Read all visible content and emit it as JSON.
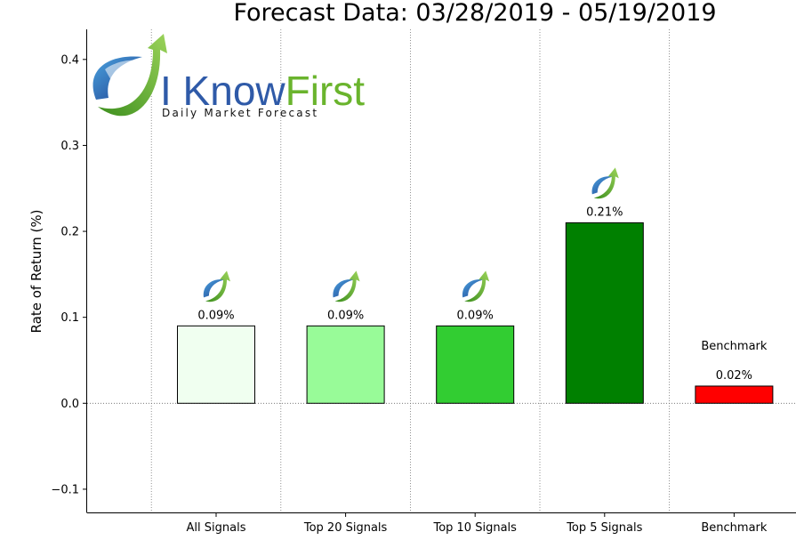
{
  "chart_data": {
    "type": "bar",
    "title": "Forecast Data: 03/28/2019 - 05/19/2019",
    "ylabel": "Rate of Return (%)",
    "xlabel": "",
    "categories": [
      "All Signals",
      "Top 20 Signals",
      "Top 10 Signals",
      "Top 5 Signals",
      "Benchmark"
    ],
    "values": [
      0.09,
      0.09,
      0.09,
      0.21,
      0.02
    ],
    "data_labels": [
      "0.09%",
      "0.09%",
      "0.09%",
      "0.21%",
      "0.02%"
    ],
    "bar_colors": [
      "#f0fff0",
      "#98fb98",
      "#32cd32",
      "#008000",
      "#ff0000"
    ],
    "y_ticks": [
      -0.1,
      0.0,
      0.1,
      0.2,
      0.3,
      0.4
    ],
    "y_tick_labels": [
      "−0.1",
      "0.0",
      "0.1",
      "0.2",
      "0.3",
      "0.4"
    ],
    "ylim": [
      -0.127,
      0.435
    ],
    "grid": "vertical dotted",
    "annotations": [
      {
        "category": "Benchmark",
        "text": "Benchmark"
      }
    ]
  },
  "logo": {
    "word_1": "I Know",
    "word_2": "First",
    "tagline": "Daily Market Forecast",
    "color_1": "#2f5aa8",
    "color_2": "#6ab42d"
  }
}
